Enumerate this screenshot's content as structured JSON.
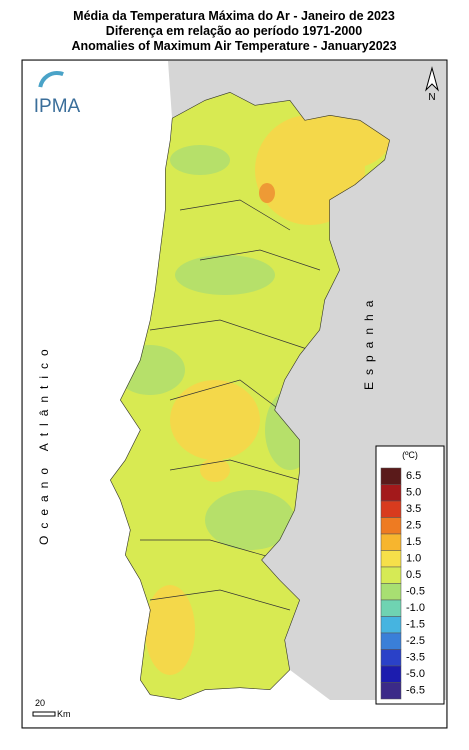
{
  "title_lines": [
    "Média da Temperatura Máxima do Ar - Janeiro de 2023",
    "Diferença em relação ao período 1971-2000",
    "Anomalies of Maximum Air Temperature - January2023"
  ],
  "logo": "IPMA",
  "north": "N",
  "ocean_label": "Oceano Atlântico",
  "spain_label": "Espanha",
  "legend": {
    "unit": "(ºC)",
    "items": [
      {
        "label": "6.5",
        "color": "#5a1a1a"
      },
      {
        "label": "5.0",
        "color": "#a3191b"
      },
      {
        "label": "3.5",
        "color": "#d83b1e"
      },
      {
        "label": "2.5",
        "color": "#ee7b22"
      },
      {
        "label": "1.5",
        "color": "#f7b52e"
      },
      {
        "label": "1.0",
        "color": "#f6e04a"
      },
      {
        "label": "0.5",
        "color": "#d6ea55"
      },
      {
        "label": "-0.5",
        "color": "#a8df72"
      },
      {
        "label": "-1.0",
        "color": "#6fd3b2"
      },
      {
        "label": "-1.5",
        "color": "#46b4e0"
      },
      {
        "label": "-2.5",
        "color": "#3a7fd8"
      },
      {
        "label": "-3.5",
        "color": "#2a41c8"
      },
      {
        "label": "-5.0",
        "color": "#1c1cae"
      },
      {
        "label": "-6.5",
        "color": "#3b2a88"
      }
    ]
  },
  "scale": {
    "distance": "20",
    "unit": "Km"
  }
}
